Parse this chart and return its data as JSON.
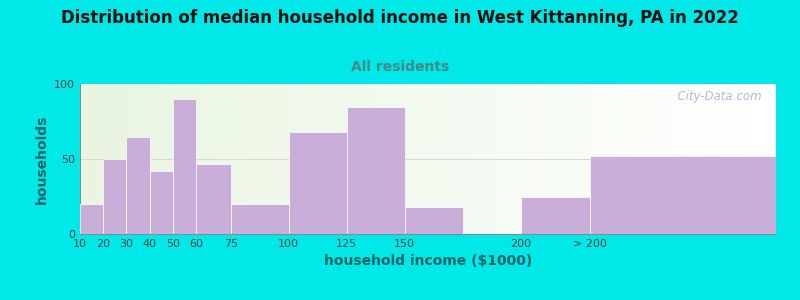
{
  "title": "Distribution of median household income in West Kittanning, PA in 2022",
  "subtitle": "All residents",
  "xlabel": "household income ($1000)",
  "ylabel": "households",
  "bar_labels": [
    "10",
    "20",
    "30",
    "40",
    "50",
    "60",
    "75",
    "100",
    "125",
    "150",
    "200",
    "> 200"
  ],
  "bar_values": [
    20,
    50,
    65,
    42,
    90,
    47,
    20,
    68,
    85,
    18,
    25,
    52
  ],
  "bar_lefts": [
    10,
    20,
    30,
    40,
    50,
    60,
    75,
    100,
    125,
    150,
    200,
    230
  ],
  "bar_widths": [
    10,
    10,
    10,
    10,
    10,
    15,
    25,
    25,
    25,
    25,
    30,
    80
  ],
  "bar_color": "#c8aed8",
  "bar_edge_color": "#ffffff",
  "ylim": [
    0,
    100
  ],
  "yticks": [
    0,
    50,
    100
  ],
  "bg_color": "#00e8e8",
  "title_fontsize": 12,
  "subtitle_fontsize": 10,
  "subtitle_color": "#448888",
  "axis_label_color": "#006666",
  "axis_label_fontsize": 10,
  "tick_fontsize": 8,
  "watermark": "  City-Data.com"
}
